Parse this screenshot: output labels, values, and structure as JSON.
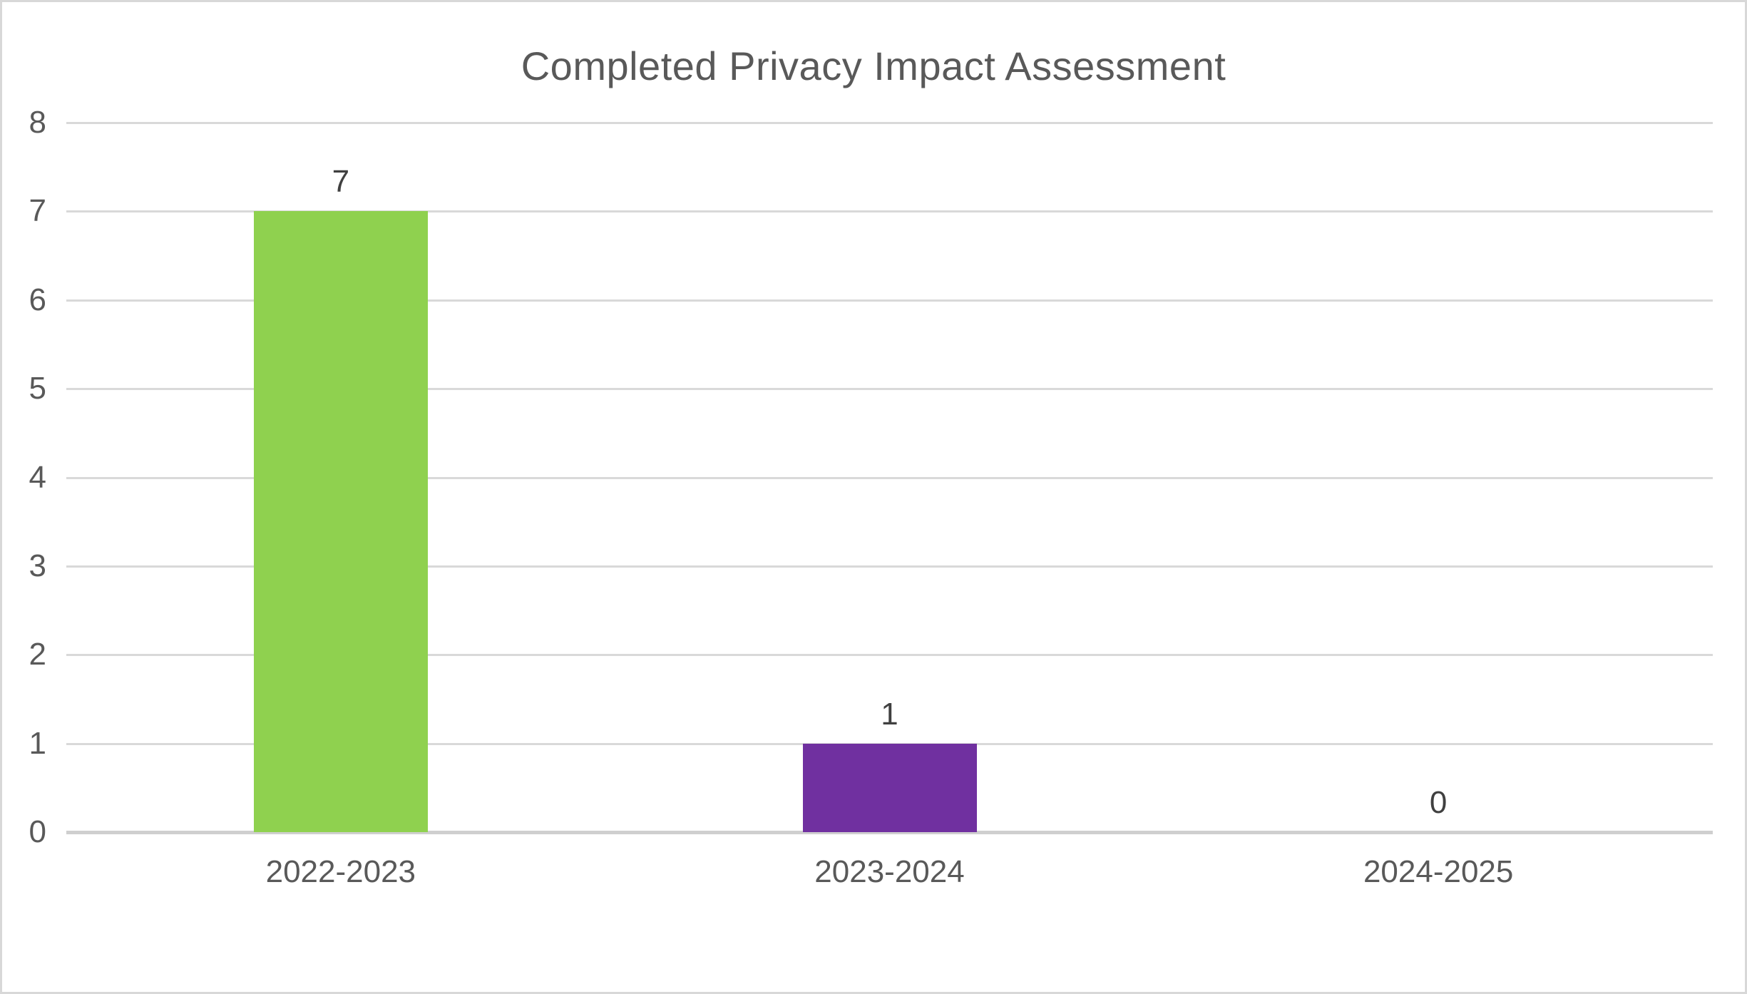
{
  "chart_data": {
    "type": "bar",
    "title": "Completed Privacy Impact Assessment",
    "categories": [
      "2022-2023",
      "2023-2024",
      "2024-2025"
    ],
    "values": [
      7,
      1,
      0
    ],
    "series": [
      {
        "name": "Completed Privacy Impact Assessment",
        "values": [
          7,
          1,
          0
        ]
      }
    ],
    "data_labels": [
      "7",
      "1",
      "0"
    ],
    "bar_colors": [
      "#8fd14f",
      "#7030a0",
      null
    ],
    "xlabel": "",
    "ylabel": "",
    "ylim": [
      0,
      8
    ],
    "yticks": [
      0,
      1,
      2,
      3,
      4,
      5,
      6,
      7,
      8
    ],
    "grid": true,
    "legend": "none",
    "theme": {
      "background": "#ffffff",
      "canvas_border": "#d8d8d8",
      "gridline_color": "#d9d9d9",
      "axis_line_color": "#cfcfcf",
      "title_color": "#595959",
      "tick_label_color": "#595959",
      "category_label_color": "#595959",
      "data_label_color": "#404040"
    }
  }
}
